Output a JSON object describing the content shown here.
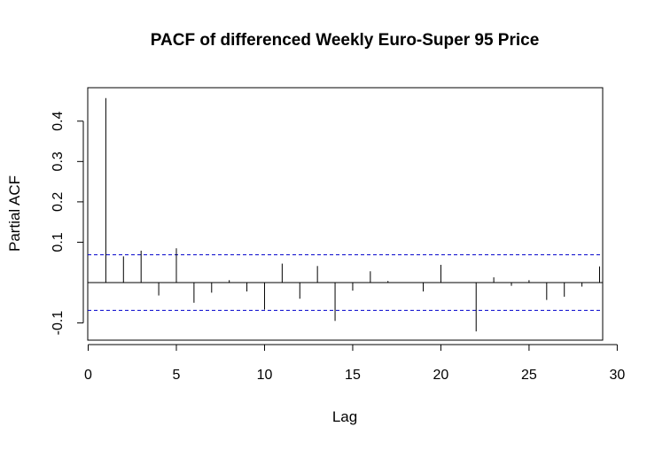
{
  "chart_data": {
    "type": "bar",
    "title": "PACF of differenced Weekly Euro-Super 95 Price",
    "xlabel": "Lag",
    "ylabel": "Partial ACF",
    "xlim": [
      0,
      30
    ],
    "ylim": [
      -0.15,
      0.47
    ],
    "x_ticks": [
      0,
      5,
      10,
      15,
      20,
      25,
      30
    ],
    "x_tick_labels": [
      "0",
      "5",
      "10",
      "15",
      "20",
      "25",
      "30"
    ],
    "y_ticks": [
      -0.1,
      0.1,
      0.2,
      0.3,
      0.4
    ],
    "y_tick_labels": [
      "-0.1",
      "0.1",
      "0.2",
      "0.3",
      "0.4"
    ],
    "confidence_bound": 0.069,
    "confidence_line_color": "#0000cc",
    "grid": false,
    "series": [
      {
        "lags": [
          1,
          2,
          3,
          4,
          5,
          6,
          7,
          8,
          9,
          10,
          11,
          12,
          13,
          14,
          15,
          16,
          17,
          18,
          19,
          20,
          21,
          22,
          23,
          24,
          25,
          26,
          27,
          28,
          29
        ],
        "values": [
          0.457,
          0.065,
          0.079,
          -0.032,
          0.085,
          -0.05,
          -0.025,
          0.006,
          -0.022,
          -0.067,
          0.047,
          -0.04,
          0.041,
          -0.095,
          -0.02,
          0.028,
          0.004,
          0.001,
          -0.022,
          0.044,
          0.001,
          -0.121,
          0.013,
          -0.008,
          0.006,
          -0.043,
          -0.035,
          -0.01,
          0.04
        ]
      }
    ]
  }
}
